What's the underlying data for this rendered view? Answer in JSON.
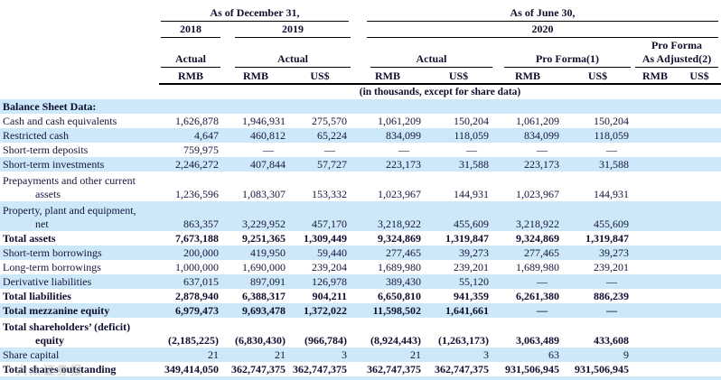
{
  "header": {
    "dec_group": "As of December 31,",
    "jun_group": "As of June 30,",
    "y2018": "2018",
    "y2019": "2019",
    "y2020": "2020",
    "actual": "Actual",
    "pro_forma": "Pro Forma(1)",
    "pro_forma_adj_l1": "Pro Forma",
    "pro_forma_adj_l2": "As Adjusted(2)",
    "rmb": "RMB",
    "usd": "US$",
    "units_note": "(in thousands, except for share data)"
  },
  "rows": [
    {
      "label": "Balance Sheet Data:",
      "bold": true,
      "stripe": true,
      "cells": [
        "",
        "",
        "",
        "",
        "",
        "",
        "",
        "",
        ""
      ]
    },
    {
      "label": "Cash and cash equivalents",
      "bold": false,
      "stripe": false,
      "cells": [
        "1,626,878",
        "1,946,931",
        "275,570",
        "1,061,209",
        "150,204",
        "1,061,209",
        "150,204",
        "",
        ""
      ]
    },
    {
      "label": "Restricted cash",
      "bold": false,
      "stripe": true,
      "cells": [
        "4,647",
        "460,812",
        "65,224",
        "834,099",
        "118,059",
        "834,099",
        "118,059",
        "",
        ""
      ]
    },
    {
      "label": "Short-term deposits",
      "bold": false,
      "stripe": false,
      "cells": [
        "759,975",
        "—",
        "—",
        "—",
        "—",
        "—",
        "—",
        "",
        ""
      ]
    },
    {
      "label": "Short-term investments",
      "bold": false,
      "stripe": true,
      "cells": [
        "2,246,272",
        "407,844",
        "57,727",
        "223,173",
        "31,588",
        "223,173",
        "31,588",
        "",
        ""
      ]
    },
    {
      "label": "Prepayments and other current",
      "label2": "assets",
      "bold": false,
      "stripe": false,
      "cells": [
        "1,236,596",
        "1,083,307",
        "153,332",
        "1,023,967",
        "144,931",
        "1,023,967",
        "144,931",
        "",
        ""
      ]
    },
    {
      "label": "Property, plant and equipment,",
      "label2": "net",
      "bold": false,
      "stripe": true,
      "cells": [
        "863,357",
        "3,229,952",
        "457,170",
        "3,218,922",
        "455,609",
        "3,218,922",
        "455,609",
        "",
        ""
      ]
    },
    {
      "label": "Total assets",
      "bold": true,
      "stripe": false,
      "cells": [
        "7,673,188",
        "9,251,365",
        "1,309,449",
        "9,324,869",
        "1,319,847",
        "9,324,869",
        "1,319,847",
        "",
        ""
      ]
    },
    {
      "label": "Short-term borrowings",
      "bold": false,
      "stripe": true,
      "cells": [
        "200,000",
        "419,950",
        "59,440",
        "277,465",
        "39,273",
        "277,465",
        "39,273",
        "",
        ""
      ]
    },
    {
      "label": "Long-term borrowings",
      "bold": false,
      "stripe": false,
      "cells": [
        "1,000,000",
        "1,690,000",
        "239,204",
        "1,689,980",
        "239,201",
        "1,689,980",
        "239,201",
        "",
        ""
      ]
    },
    {
      "label": "Derivative liabilities",
      "bold": false,
      "stripe": true,
      "cells": [
        "637,015",
        "897,091",
        "126,978",
        "389,430",
        "55,120",
        "—",
        "—",
        "",
        ""
      ]
    },
    {
      "label": "Total liabilities",
      "bold": true,
      "stripe": false,
      "cells": [
        "2,878,940",
        "6,388,317",
        "904,211",
        "6,650,810",
        "941,359",
        "6,261,380",
        "886,239",
        "",
        ""
      ]
    },
    {
      "label": "Total mezzanine equity",
      "bold": true,
      "stripe": true,
      "cells": [
        "6,979,473",
        "9,693,478",
        "1,372,022",
        "11,598,502",
        "1,641,661",
        "—",
        "—",
        "",
        ""
      ]
    },
    {
      "label": "Total shareholders’ (deficit)",
      "label2": "equity",
      "bold": true,
      "stripe": false,
      "cells": [
        "(2,185,225)",
        "(6,830,430)",
        "(966,784)",
        "(8,924,443)",
        "(1,263,173)",
        "3,063,489",
        "433,608",
        "",
        ""
      ]
    },
    {
      "label": "Share capital",
      "bold": false,
      "stripe": true,
      "cells": [
        "21",
        "21",
        "3",
        "21",
        "3",
        "63",
        "9",
        "",
        ""
      ]
    },
    {
      "label": "Total shares outstanding",
      "bold": true,
      "stripe": false,
      "cells": [
        "349,414,050",
        "362,747,375",
        "362,747,375",
        "362,747,375",
        "362,747,375",
        "931,506,945",
        "931,506,945",
        "",
        ""
      ]
    }
  ],
  "watermark": "大众证券报",
  "colors": {
    "stripe": "#cde8f8",
    "text": "#15153d",
    "line": "#000000"
  }
}
